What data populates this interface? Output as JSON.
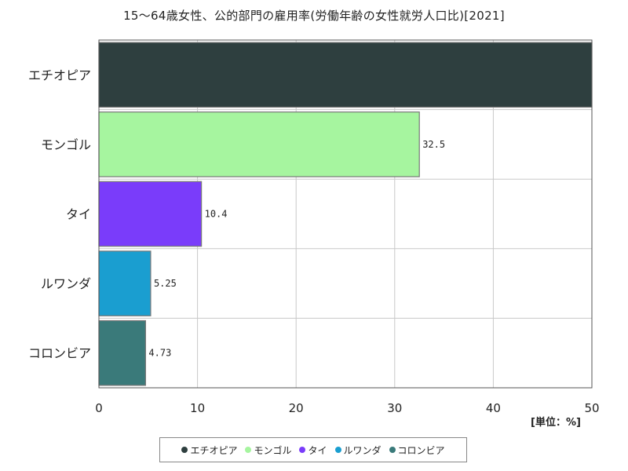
{
  "chart_data": {
    "type": "bar",
    "orientation": "horizontal",
    "title": "15〜64歳女性、公的部門の雇用率(労働年齢の女性就労人口比)[2021]",
    "unit_label": "[単位：%]",
    "xlim": [
      0,
      50
    ],
    "x_ticks": [
      "0",
      "10",
      "20",
      "30",
      "40",
      "50"
    ],
    "grid": true,
    "legend_position": "bottom",
    "categories": [
      "エチオピア",
      "モンゴル",
      "タイ",
      "ルワンダ",
      "コロンビア"
    ],
    "values": [
      50,
      32.5,
      10.4,
      5.25,
      4.73
    ],
    "value_labels": [
      "",
      "32.5",
      "10.4",
      "5.25",
      "4.73"
    ],
    "colors": [
      "#2e3f3f",
      "#a6f59f",
      "#7a3cfa",
      "#1a9ed0",
      "#3a7a7a"
    ]
  }
}
